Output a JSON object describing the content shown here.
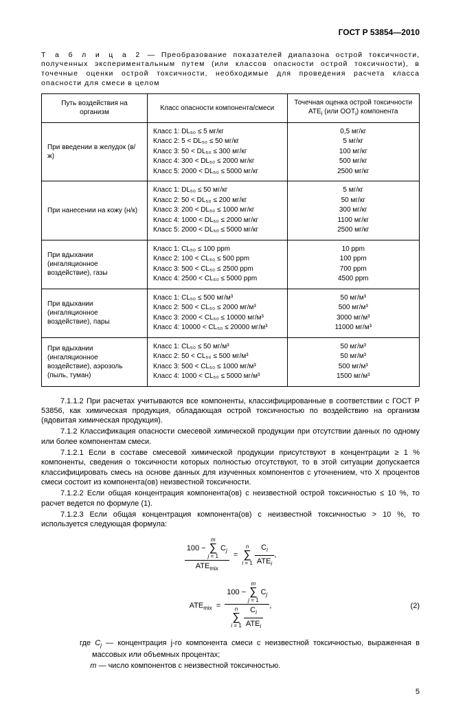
{
  "header": {
    "doc_id": "ГОСТ Р 53854—2010"
  },
  "table_caption_label": "Т а б л и ц а  2",
  "table_caption": " — Преобразование показателей диапазона острой токсичности, полученных экспериментальным путем (или классов опасности острой токсичности), в точечные оценки острой токсичности, необходимые для проведения расчета класса опасности для смеси в целом",
  "table": {
    "headers": {
      "c1": "Путь воздействия на организм",
      "c2": "Класс опасности компонента/смеси",
      "c3_l1": "Точечная оценка острой токсичности",
      "c3_l2": "ATE",
      "c3_sub": "i",
      "c3_l3": " (или ООТ",
      "c3_l4": ") компонента"
    },
    "rows": [
      {
        "c1": "При введении в желудок (в/ж)",
        "c2": [
          "Класс 1: DL₅₀ ≤ 5 мг/кг",
          "Класс 2: 5 < DL₅₀ ≤ 50 мг/кг",
          "Класс 3: 50 < DL₅₀ ≤ 300 мг/кг",
          "Класс 4: 300 < DL₅₀ ≤ 2000 мг/кг",
          "Класс 5: 2000 < DL₅₀ ≤ 5000 мг/кг"
        ],
        "c3": [
          "0,5 мг/кг",
          "5 мг/кг",
          "100 мг/кг",
          "500 мг/кг",
          "2500 мг/кг"
        ]
      },
      {
        "c1": "При нанесении на кожу (н/к)",
        "c2": [
          "Класс 1: DL₅₀ ≤ 50 мг/кг",
          "Класс 2: 50 < DL₅₀ ≤ 200 мг/кг",
          "Класс 3: 200 < DL₅₀ ≤ 1000 мг/кг",
          "Класс 4: 1000 < DL₅₀ ≤ 2000 мг/кг",
          "Класс 5: 2000 < DL₅₀ ≤ 5000 мг/кг"
        ],
        "c3": [
          "5 мг/кг",
          "50 мг/кг",
          "300 мг/кг",
          "1100 мг/кг",
          "2500 мг/кг"
        ]
      },
      {
        "c1": "При вдыхании (ингаляционное воздействие), газы",
        "c2": [
          "Класс 1: CL₅₀ ≤ 100 ppm",
          "Класс 2: 100 < CL₅₀ ≤ 500 ppm",
          "Класс 3: 500 < CL₅₀ ≤ 2500 ppm",
          "Класс 4: 2500 < CL₅₀ ≤ 5000 ppm"
        ],
        "c3": [
          "10 ppm",
          "100 ppm",
          "700 ppm",
          "4500 ppm"
        ]
      },
      {
        "c1": "При вдыхании (ингаляционное воздействие), пары",
        "c2": [
          "Класс 1: CL₅₀ ≤ 500 мг/м³",
          "Класс 2: 500 < CL₅₀ ≤ 2000 мг/м³",
          "Класс 3: 2000 < CL₅₀ ≤ 10000 мг/м³",
          "Класс 4: 10000 < CL₅₀ ≤ 20000 мг/м³"
        ],
        "c3": [
          "50 мг/м³",
          "500 мг/м³",
          "3000 мг/м³",
          "11000 мг/м³"
        ]
      },
      {
        "c1": "При вдыхании (ингаляционное воздействие), аэрозоль (пыль, туман)",
        "c2": [
          "Класс 1: CL₅₀ ≤ 50 мг/м³",
          "Класс 2: 50 < CL₅₀ ≤ 500 мг/м³",
          "Класс 3: 500 < CL₅₀ ≤ 1000 мг/м³",
          "Класс 4: 1000 < CL₅₀ ≤ 5000 мг/м³"
        ],
        "c3": [
          "50 мг/м³",
          "50 мг/м³",
          "500 мг/м³",
          "1500 мг/м³"
        ]
      }
    ]
  },
  "paras": {
    "p1": "7.1.1.2 При расчетах учитываются все компоненты, классифицированные в соответствии с ГОСТ Р 53856, как химическая продукция, обладающая острой токсичностью по воздействию на организм (ядовитая химическая продукция).",
    "p2": "7.1.2 Классификация опасности смесевой химической продукции при отсутствии данных по одному или более компонентам смеси.",
    "p3": "7.1.2.1 Если в составе смесевой химической продукции присутствуют в концентрации ≥ 1 % компоненты, сведения о токсичности которых полностью отсутствуют, то в этой ситуации допускается классифицировать смесь на основе данных для изученных компонентов с уточнением, что X процентов смеси состоит из компонента(ов) неизвестной токсичности.",
    "p4": "7.1.2.2 Если общая концентрация компонента(ов) с неизвестной острой токсичностью ≤ 10 %, то расчет ведется по формуле (1).",
    "p5": "7.1.2.3 Если общая концентрация компонента(ов) с неизвестной токсичностью > 10 %, то используется следующая формула:"
  },
  "formula": {
    "eqnum": "(2)"
  },
  "where": {
    "w1_pre": "где ",
    "w1_var": "C",
    "w1_sub": "j",
    "w1_post": " — концентрация j-го компонента смеси с неизвестной токсичностью, выраженная в массовых или объемных процентах;",
    "w2_var": "m",
    "w2_post": " — число компонентов с неизвестной токсичностью."
  },
  "pagenum": "5"
}
